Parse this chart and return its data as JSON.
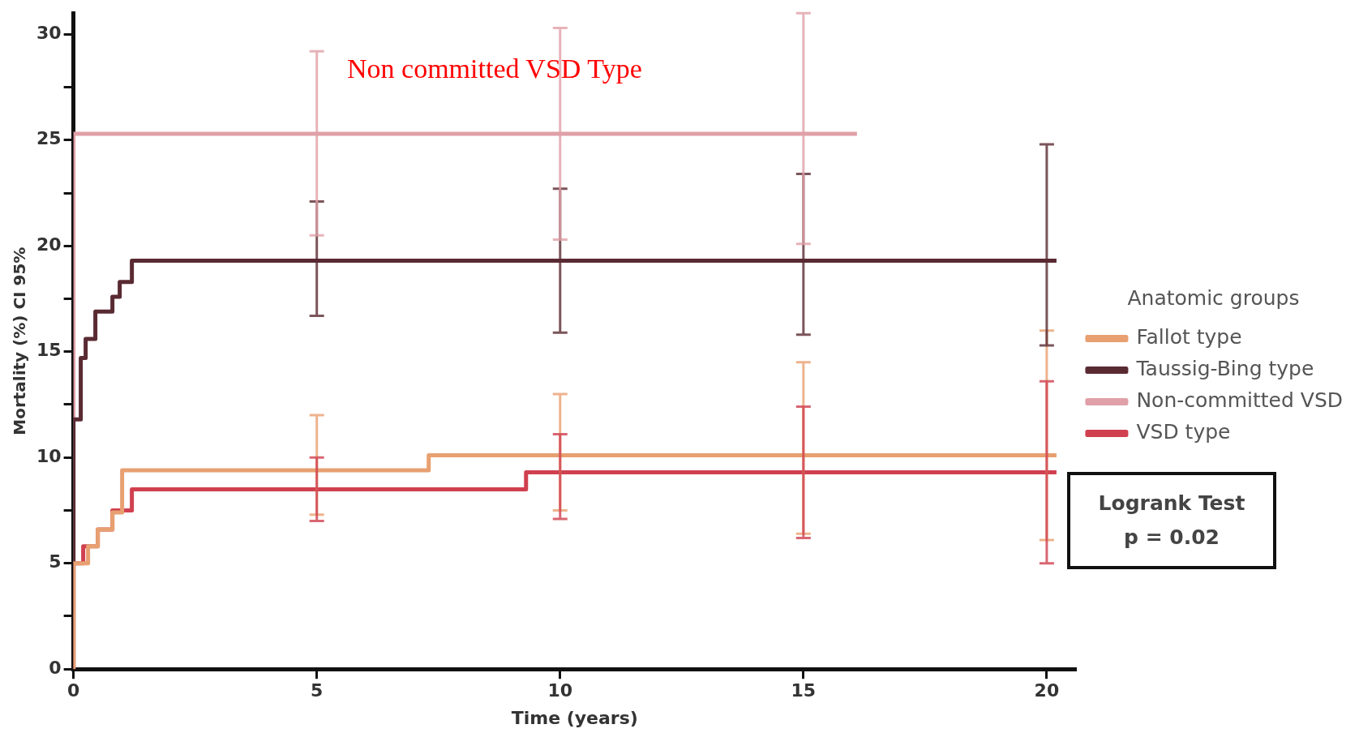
{
  "chart_data": {
    "type": "step",
    "xlabel": "Time (years)",
    "ylabel": "Mortality (%) CI 95%",
    "legend_title": "Anatomic groups",
    "legend": "right",
    "grid": false,
    "xlim": [
      0,
      20.6
    ],
    "xticks": [
      0,
      5,
      10,
      15,
      20
    ],
    "ylim": [
      0,
      31
    ],
    "yticks": [
      0,
      {
        "value": 2.5,
        "label": null
      },
      5,
      {
        "value": 7.5,
        "label": null
      },
      10,
      {
        "value": 12.5,
        "label": null
      },
      15,
      {
        "value": 17.5,
        "label": null
      },
      20,
      {
        "value": 22.5,
        "label": null
      },
      25,
      {
        "value": 27.5,
        "label": null
      },
      30
    ],
    "annotations": [
      "Non committed VSD Type",
      "Logrank Test",
      "p = 0.02"
    ],
    "series": [
      {
        "name": "Fallot type",
        "color": "#e8a070",
        "x": [
          0,
          0,
          0.3,
          0.5,
          0.8,
          1.0,
          5,
          7.3,
          10,
          15,
          20,
          20.2
        ],
        "values": [
          0,
          5,
          5.8,
          6.6,
          7.4,
          9.4,
          9.4,
          10.1,
          10.1,
          10.1,
          10.1,
          10.1
        ],
        "errors": [
          null,
          null,
          null,
          null,
          null,
          null,
          [
            7.3,
            12.0
          ],
          null,
          [
            7.5,
            13.0
          ],
          [
            6.4,
            14.5
          ],
          [
            6.1,
            16.0
          ],
          null
        ]
      },
      {
        "name": "Taussig-Bing type",
        "color": "#5a2a32",
        "x": [
          0,
          0,
          0.15,
          0.25,
          0.45,
          0.8,
          0.95,
          1.2,
          5,
          10,
          15,
          20,
          20.2
        ],
        "values": [
          0,
          11.8,
          14.7,
          15.6,
          16.9,
          17.6,
          18.3,
          19.3,
          19.3,
          19.3,
          19.3,
          19.3,
          19.3
        ],
        "errors": [
          null,
          null,
          null,
          null,
          null,
          null,
          null,
          null,
          [
            16.7,
            22.1
          ],
          [
            15.9,
            22.7
          ],
          [
            15.8,
            23.4
          ],
          [
            15.3,
            24.8
          ],
          null
        ]
      },
      {
        "name": "Non-committed VSD",
        "color": "#e0a0a8",
        "x": [
          0,
          0,
          5,
          10,
          15,
          16.1
        ],
        "values": [
          0,
          25.3,
          25.3,
          25.3,
          25.3,
          25.3
        ],
        "errors": [
          null,
          null,
          [
            20.5,
            29.2
          ],
          [
            20.3,
            30.3
          ],
          [
            20.1,
            31
          ],
          null
        ]
      },
      {
        "name": "VSD type",
        "color": "#d0404f",
        "x": [
          0,
          0,
          0.2,
          0.5,
          0.8,
          1.2,
          5,
          9.3,
          10,
          15,
          20,
          20.2
        ],
        "values": [
          0,
          5,
          5.8,
          6.6,
          7.5,
          8.5,
          8.5,
          9.3,
          9.3,
          9.3,
          9.3,
          9.3
        ],
        "errors": [
          null,
          null,
          null,
          null,
          null,
          null,
          [
            7.0,
            10.0
          ],
          null,
          [
            7.1,
            11.1
          ],
          [
            6.2,
            12.4
          ],
          [
            5.0,
            13.6
          ],
          null
        ]
      }
    ]
  }
}
